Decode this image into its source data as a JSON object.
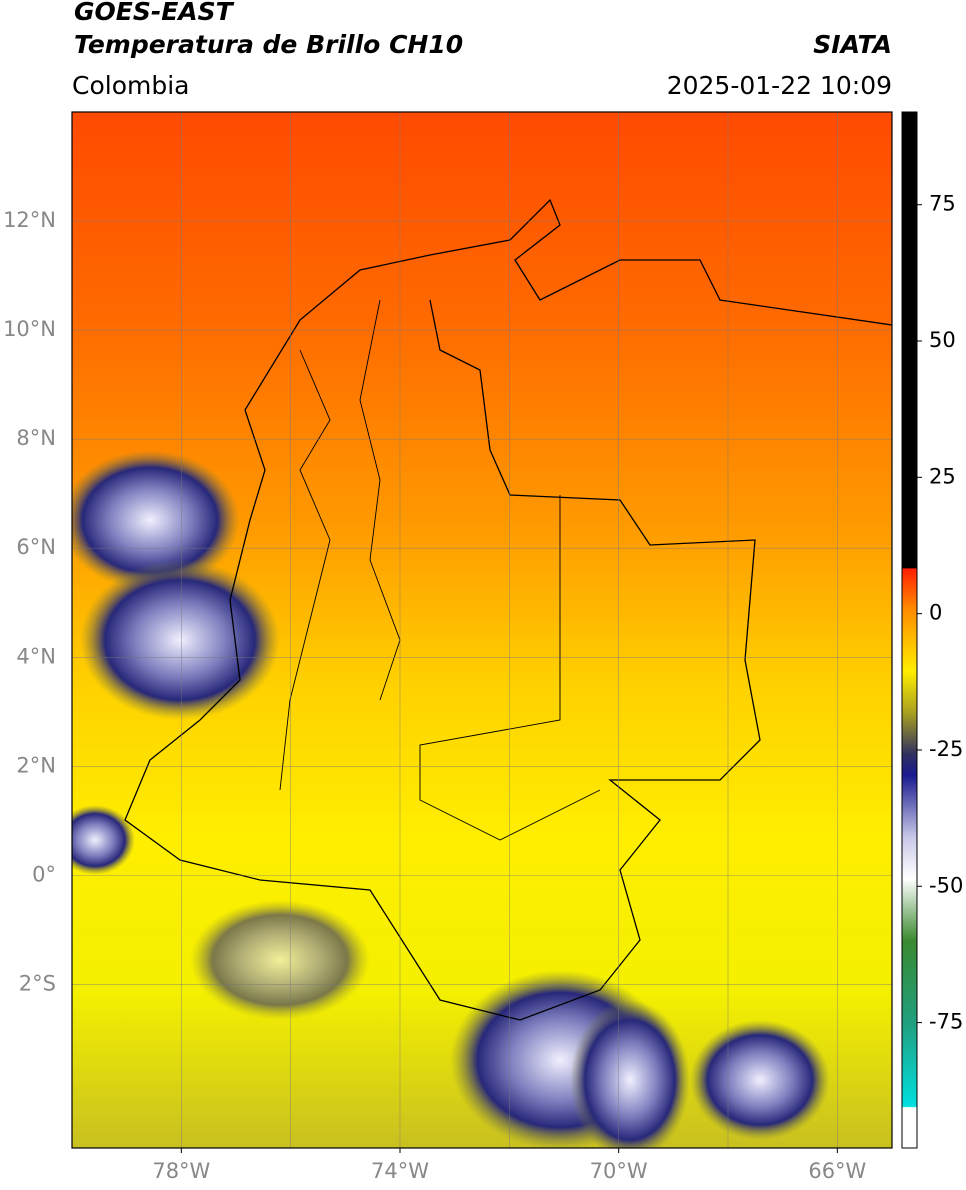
{
  "header": {
    "title": "GOES-EAST",
    "subtitle": "Temperatura de Brillo CH10",
    "region": "Colombia",
    "source": "SIATA",
    "datetime": "2025-01-22 10:09"
  },
  "map": {
    "xlim": [
      -80,
      -65
    ],
    "ylim": [
      -5,
      14
    ],
    "xticks": [
      {
        "value": -78,
        "label": "78°W"
      },
      {
        "value": -74,
        "label": "74°W"
      },
      {
        "value": -70,
        "label": "70°W"
      },
      {
        "value": -66,
        "label": "66°W"
      }
    ],
    "yticks": [
      {
        "value": 12,
        "label": "12°N"
      },
      {
        "value": 10,
        "label": "10°N"
      },
      {
        "value": 8,
        "label": "8°N"
      },
      {
        "value": 6,
        "label": "6°N"
      },
      {
        "value": 4,
        "label": "4°N"
      },
      {
        "value": 2,
        "label": "2°N"
      },
      {
        "value": 0,
        "label": "0°"
      },
      {
        "value": -2,
        "label": "2°S"
      }
    ],
    "xgrid": [
      -78,
      -76,
      -74,
      -72,
      -70,
      -68,
      -66
    ],
    "grid": true
  },
  "colorbar": {
    "lim": [
      -98,
      92
    ],
    "ticks": [
      75,
      50,
      25,
      0,
      -25,
      -50,
      -75
    ]
  }
}
